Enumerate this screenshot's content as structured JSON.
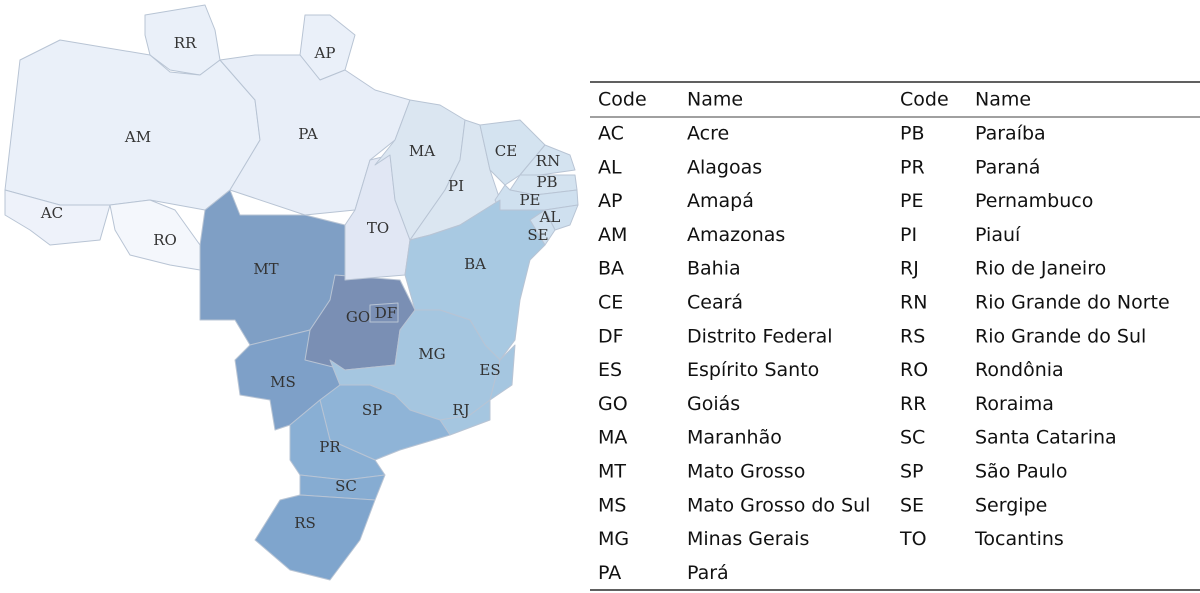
{
  "map": {
    "labels": [
      "RR",
      "AP",
      "AM",
      "PA",
      "AC",
      "RO",
      "MT",
      "MS",
      "GO",
      "DF",
      "TO",
      "MA",
      "PI",
      "CE",
      "RN",
      "PB",
      "PE",
      "AL",
      "SE",
      "BA",
      "MG",
      "ES",
      "RJ",
      "SP",
      "PR",
      "SC",
      "RS"
    ]
  },
  "table": {
    "header": [
      "Code",
      "Name",
      "Code",
      "Name"
    ],
    "rows": [
      [
        "AC",
        "Acre",
        "PB",
        "Paraíba"
      ],
      [
        "AL",
        "Alagoas",
        "PR",
        "Paraná"
      ],
      [
        "AP",
        "Amapá",
        "PE",
        "Pernambuco"
      ],
      [
        "AM",
        "Amazonas",
        "PI",
        "Piauí"
      ],
      [
        "BA",
        "Bahia",
        "RJ",
        "Rio de Janeiro"
      ],
      [
        "CE",
        "Ceará",
        "RN",
        "Rio Grande do Norte"
      ],
      [
        "DF",
        "Distrito Federal",
        "RS",
        "Rio Grande do Sul"
      ],
      [
        "ES",
        "Espírito Santo",
        "RO",
        "Rondônia"
      ],
      [
        "GO",
        "Goiás",
        "RR",
        "Roraima"
      ],
      [
        "MA",
        "Maranhão",
        "SC",
        "Santa Catarina"
      ],
      [
        "MT",
        "Mato Grosso",
        "SP",
        "São Paulo"
      ],
      [
        "MS",
        "Mato Grosso do Sul",
        "SE",
        "Sergipe"
      ],
      [
        "MG",
        "Minas Gerais",
        "TO",
        "Tocantins"
      ],
      [
        "PA",
        "Pará"
      ]
    ]
  }
}
